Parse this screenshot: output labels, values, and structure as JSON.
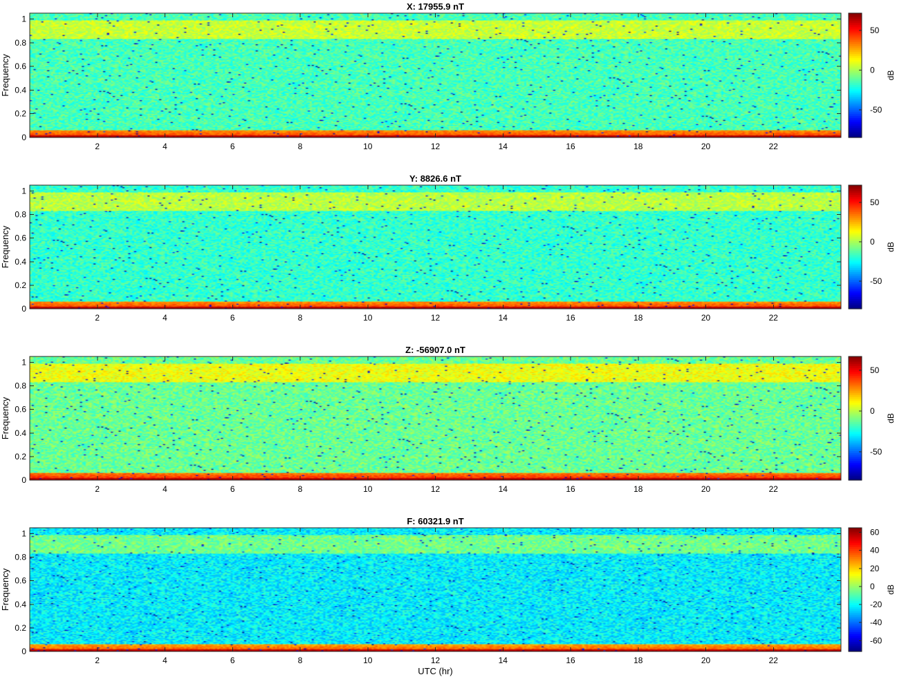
{
  "chart_data": [
    {
      "type": "heatmap",
      "title": "X: 17955.9 nT",
      "ylabel": "Frequency",
      "xlabel": "",
      "xlim": [
        0,
        24
      ],
      "ylim": [
        0,
        1.05
      ],
      "xticks": [
        "2",
        "4",
        "6",
        "8",
        "10",
        "12",
        "14",
        "16",
        "18",
        "20",
        "22"
      ],
      "yticks": [
        "0",
        "0.2",
        "0.4",
        "0.6",
        "0.8",
        "1"
      ],
      "colorbar": {
        "label": "dB",
        "clim": [
          -85,
          72
        ],
        "ticks": [
          "50",
          "0",
          "-50"
        ],
        "tick_values": [
          50,
          0,
          -50
        ]
      },
      "bands": {
        "background_db": -15,
        "high_band_db": 5,
        "low_edge_db": 45
      }
    },
    {
      "type": "heatmap",
      "title": "Y: 8826.6 nT",
      "ylabel": "Frequency",
      "xlabel": "",
      "xlim": [
        0,
        24
      ],
      "ylim": [
        0,
        1.05
      ],
      "xticks": [
        "2",
        "4",
        "6",
        "8",
        "10",
        "12",
        "14",
        "16",
        "18",
        "20",
        "22"
      ],
      "yticks": [
        "0",
        "0.2",
        "0.4",
        "0.6",
        "0.8",
        "1"
      ],
      "colorbar": {
        "label": "dB",
        "clim": [
          -85,
          72
        ],
        "ticks": [
          "50",
          "0",
          "-50"
        ],
        "tick_values": [
          50,
          0,
          -50
        ]
      },
      "bands": {
        "background_db": -18,
        "high_band_db": 3,
        "low_edge_db": 45
      }
    },
    {
      "type": "heatmap",
      "title": "Z: -56907.0 nT",
      "ylabel": "Frequency",
      "xlabel": "",
      "xlim": [
        0,
        24
      ],
      "ylim": [
        0,
        1.05
      ],
      "xticks": [
        "2",
        "4",
        "6",
        "8",
        "10",
        "12",
        "14",
        "16",
        "18",
        "20",
        "22"
      ],
      "yticks": [
        "0",
        "0.2",
        "0.4",
        "0.6",
        "0.8",
        "1"
      ],
      "colorbar": {
        "label": "dB",
        "clim": [
          -85,
          67
        ],
        "ticks": [
          "50",
          "0",
          "-50"
        ],
        "tick_values": [
          50,
          0,
          -50
        ]
      },
      "bands": {
        "background_db": -12,
        "high_band_db": 8,
        "low_edge_db": 45
      }
    },
    {
      "type": "heatmap",
      "title": "F: 60321.9 nT",
      "ylabel": "Frequency",
      "xlabel": "UTC (hr)",
      "xlim": [
        0,
        24
      ],
      "ylim": [
        0,
        1.05
      ],
      "xticks": [
        "2",
        "4",
        "6",
        "8",
        "10",
        "12",
        "14",
        "16",
        "18",
        "20",
        "22"
      ],
      "yticks": [
        "0",
        "0.2",
        "0.4",
        "0.6",
        "0.8",
        "1"
      ],
      "colorbar": {
        "label": "dB",
        "clim": [
          -72,
          65
        ],
        "ticks": [
          "60",
          "40",
          "20",
          "0",
          "-20",
          "-40",
          "-60"
        ],
        "tick_values": [
          60,
          40,
          20,
          0,
          -20,
          -40,
          -60
        ]
      },
      "bands": {
        "background_db": -22,
        "high_band_db": -5,
        "low_edge_db": 40
      }
    }
  ]
}
